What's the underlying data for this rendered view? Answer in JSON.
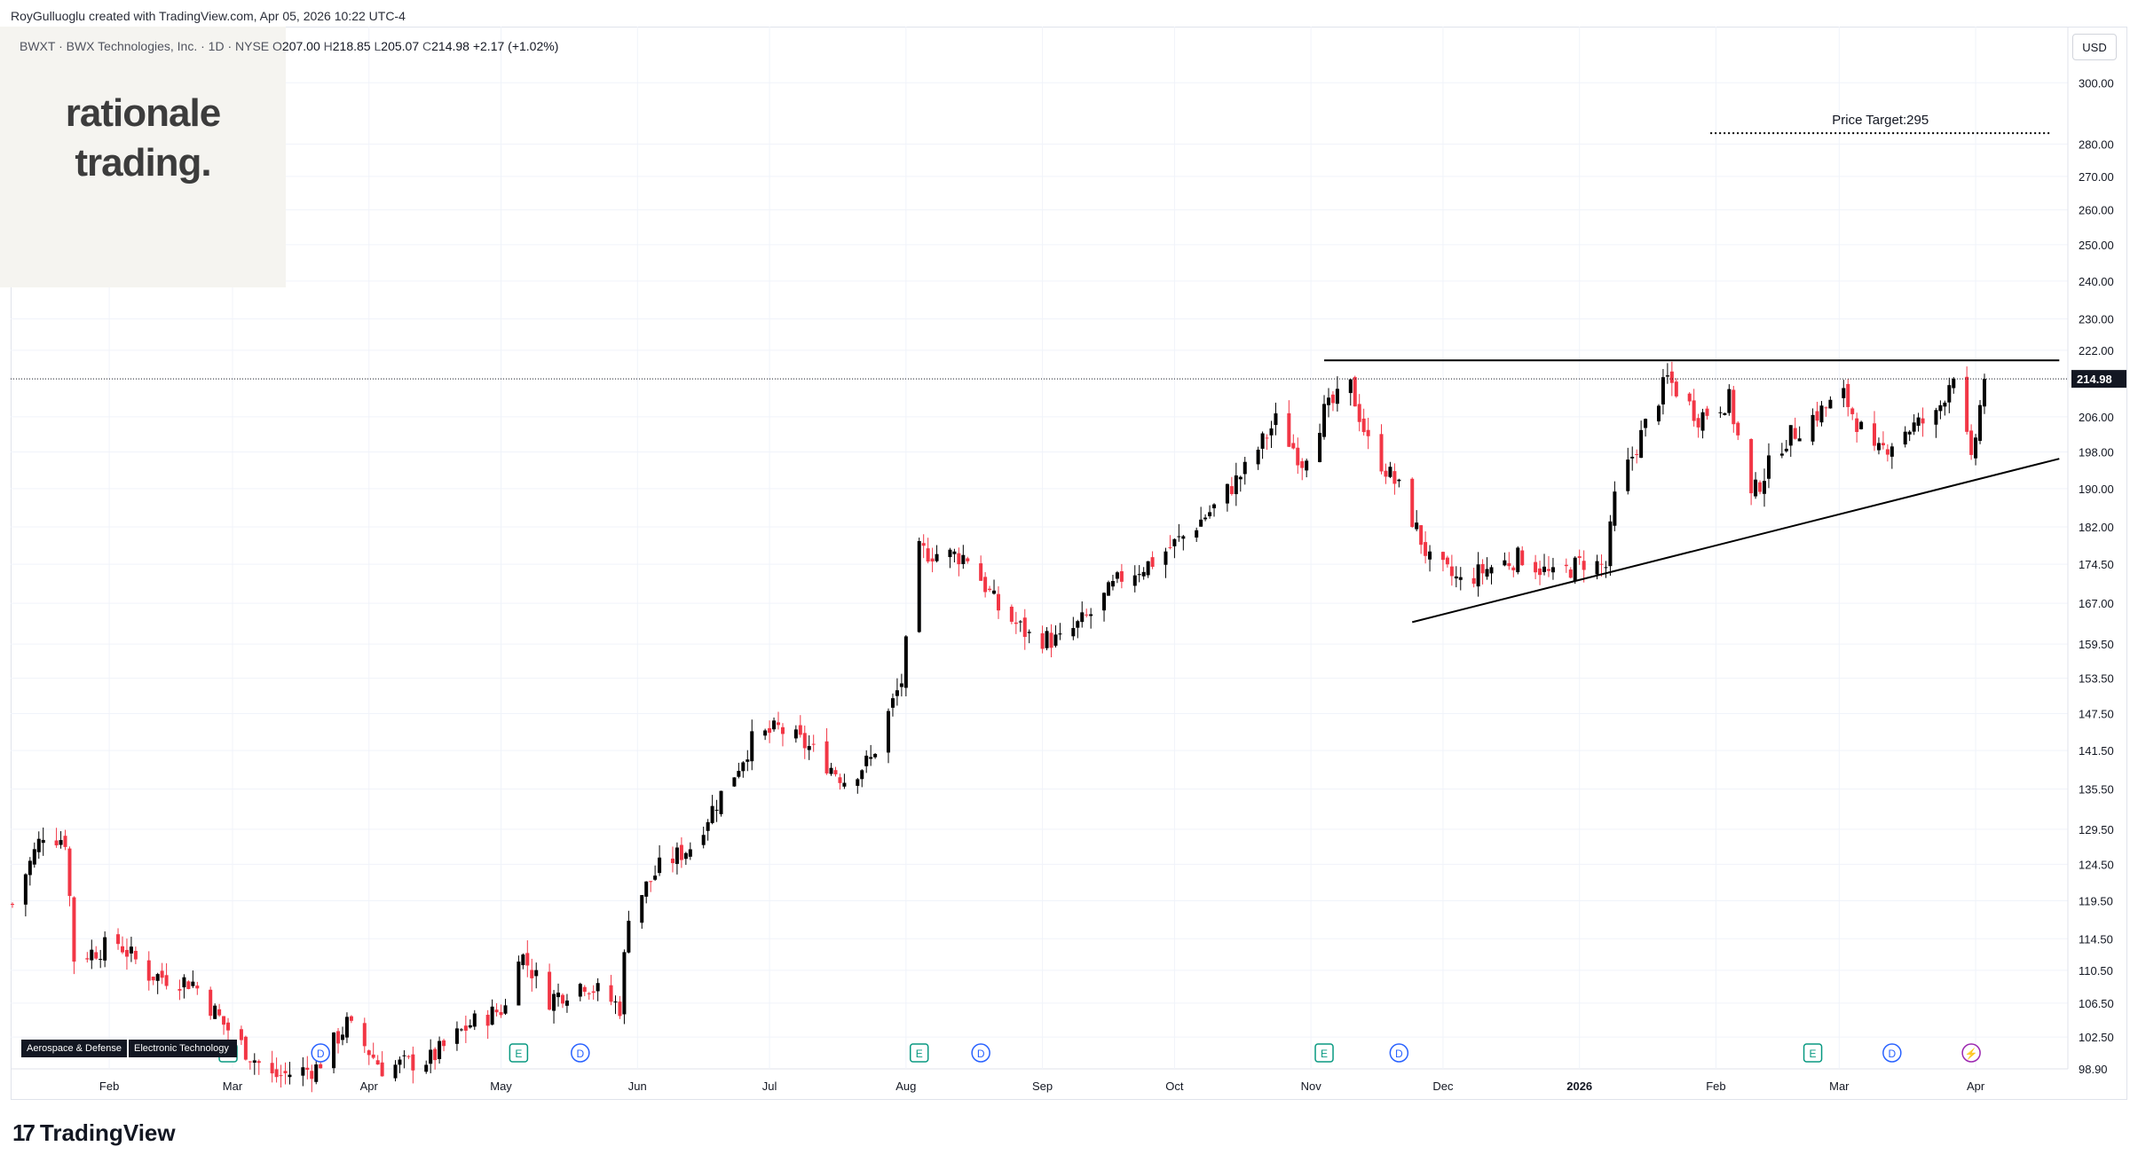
{
  "header": {
    "attribution": "RoyGulluoglu created with TradingView.com, Apr 05, 2026 10:22 UTC-4",
    "symbol": "BWXT · BWX Technologies, Inc. · 1D · NYSE",
    "open_label": "O",
    "open": "207.00",
    "high_label": "H",
    "high": "218.85",
    "low_label": "L",
    "low": "205.07",
    "close_label": "C",
    "close": "214.98",
    "change": "+2.17 (+1.02%)"
  },
  "brand": {
    "line1": "rationale",
    "line2": "trading."
  },
  "currency": "USD",
  "price_target_label": "Price Target:295",
  "last_price_label": "214.98",
  "industry": [
    "Aerospace & Defense",
    "Electronic Technology"
  ],
  "footer": {
    "logo_text": "TradingView"
  },
  "colors": {
    "up": "#000000",
    "down": "#f23645",
    "grid": "#f0f3fa",
    "line": "#000000",
    "earnings": "#089981",
    "dividend": "#2962ff",
    "split": "#9c27b0"
  },
  "chart_data": {
    "type": "candlestick",
    "title": "BWXT · BWX Technologies, Inc. · 1D · NYSE",
    "xlabel": "",
    "ylabel": "",
    "y_scale": "log",
    "ylim": [
      98.9,
      304
    ],
    "y_ticks": [
      "300.00",
      "280.00",
      "270.00",
      "260.00",
      "250.00",
      "240.00",
      "230.00",
      "222.00",
      "214.98",
      "206.00",
      "198.00",
      "190.00",
      "182.00",
      "174.50",
      "167.00",
      "159.50",
      "153.50",
      "147.50",
      "141.50",
      "135.50",
      "129.50",
      "124.50",
      "119.50",
      "114.50",
      "110.50",
      "106.50",
      "102.50",
      "98.90"
    ],
    "x_ticks": [
      "Feb",
      "Mar",
      "Apr",
      "May",
      "Jun",
      "Jul",
      "Aug",
      "Sep",
      "Oct",
      "Nov",
      "Dec",
      "2026",
      "Feb",
      "Mar",
      "Apr"
    ],
    "x_tick_dates": [
      "2025-02-01",
      "2025-03-01",
      "2025-04-01",
      "2025-05-01",
      "2025-06-01",
      "2025-07-01",
      "2025-08-01",
      "2025-09-01",
      "2025-10-01",
      "2025-11-01",
      "2025-12-01",
      "2026-01-01",
      "2026-02-01",
      "2026-03-01",
      "2026-04-01"
    ],
    "price_path": [
      [
        "2025-01-10",
        119
      ],
      [
        "2025-01-17",
        129
      ],
      [
        "2025-01-22",
        128
      ],
      [
        "2025-01-24",
        112
      ],
      [
        "2025-02-03",
        114
      ],
      [
        "2025-02-10",
        110
      ],
      [
        "2025-02-20",
        109
      ],
      [
        "2025-02-27",
        104
      ],
      [
        "2025-03-04",
        101
      ],
      [
        "2025-03-10",
        98
      ],
      [
        "2025-03-20",
        99
      ],
      [
        "2025-03-27",
        104
      ],
      [
        "2025-04-04",
        99
      ],
      [
        "2025-04-15",
        100
      ],
      [
        "2025-04-24",
        104
      ],
      [
        "2025-05-02",
        106
      ],
      [
        "2025-05-05",
        113
      ],
      [
        "2025-05-12",
        107
      ],
      [
        "2025-05-20",
        109
      ],
      [
        "2025-05-28",
        106
      ],
      [
        "2025-05-30",
        118
      ],
      [
        "2025-06-06",
        124
      ],
      [
        "2025-06-13",
        127
      ],
      [
        "2025-06-23",
        138
      ],
      [
        "2025-06-27",
        143
      ],
      [
        "2025-07-03",
        145
      ],
      [
        "2025-07-10",
        142
      ],
      [
        "2025-07-18",
        137
      ],
      [
        "2025-07-24",
        140
      ],
      [
        "2025-07-31",
        153
      ],
      [
        "2025-08-04",
        177
      ],
      [
        "2025-08-15",
        176
      ],
      [
        "2025-08-22",
        166
      ],
      [
        "2025-08-29",
        161
      ],
      [
        "2025-09-05",
        160
      ],
      [
        "2025-09-12",
        165
      ],
      [
        "2025-09-19",
        172
      ],
      [
        "2025-09-26",
        175
      ],
      [
        "2025-10-03",
        180
      ],
      [
        "2025-10-10",
        186
      ],
      [
        "2025-10-17",
        194
      ],
      [
        "2025-10-24",
        205
      ],
      [
        "2025-10-30",
        196
      ],
      [
        "2025-11-04",
        207
      ],
      [
        "2025-11-10",
        213
      ],
      [
        "2025-11-14",
        200
      ],
      [
        "2025-11-21",
        190
      ],
      [
        "2025-11-28",
        175
      ],
      [
        "2025-12-05",
        171
      ],
      [
        "2025-12-12",
        174
      ],
      [
        "2025-12-19",
        176
      ],
      [
        "2025-12-26",
        172
      ],
      [
        "2026-01-02",
        175
      ],
      [
        "2026-01-07",
        174
      ],
      [
        "2026-01-09",
        188
      ],
      [
        "2026-01-16",
        204
      ],
      [
        "2026-01-21",
        215
      ],
      [
        "2026-01-28",
        206
      ],
      [
        "2026-02-04",
        210
      ],
      [
        "2026-02-09",
        188
      ],
      [
        "2026-02-16",
        200
      ],
      [
        "2026-02-23",
        206
      ],
      [
        "2026-03-02",
        211
      ],
      [
        "2026-03-09",
        197
      ],
      [
        "2026-03-16",
        203
      ],
      [
        "2026-03-23",
        206
      ],
      [
        "2026-03-27",
        217
      ],
      [
        "2026-03-31",
        195
      ],
      [
        "2026-04-03",
        214.98
      ]
    ],
    "last_close": 214.98,
    "annotations": [
      {
        "type": "horizontal_line",
        "label": "Price Target:295",
        "value": 295,
        "from": "2025-11-01",
        "to": "2026-04-20",
        "style": "dotted"
      },
      {
        "type": "resistance_line",
        "value": 219.5,
        "from": "2025-11-04",
        "to": "2026-04-20"
      },
      {
        "type": "trend_line",
        "from": [
          "2025-11-24",
          163.5
        ],
        "to": [
          "2026-04-20",
          196.5
        ]
      },
      {
        "type": "last_price_line",
        "value": 214.98
      }
    ],
    "events": [
      {
        "kind": "E",
        "date": "2025-02-28"
      },
      {
        "kind": "D",
        "date": "2025-03-21"
      },
      {
        "kind": "E",
        "date": "2025-05-05"
      },
      {
        "kind": "D",
        "date": "2025-05-19"
      },
      {
        "kind": "E",
        "date": "2025-08-04"
      },
      {
        "kind": "D",
        "date": "2025-08-18"
      },
      {
        "kind": "E",
        "date": "2025-11-04"
      },
      {
        "kind": "D",
        "date": "2025-11-21"
      },
      {
        "kind": "E",
        "date": "2026-02-23"
      },
      {
        "kind": "D",
        "date": "2026-03-13"
      },
      {
        "kind": "S",
        "date": "2026-03-31"
      }
    ],
    "grid": true
  }
}
